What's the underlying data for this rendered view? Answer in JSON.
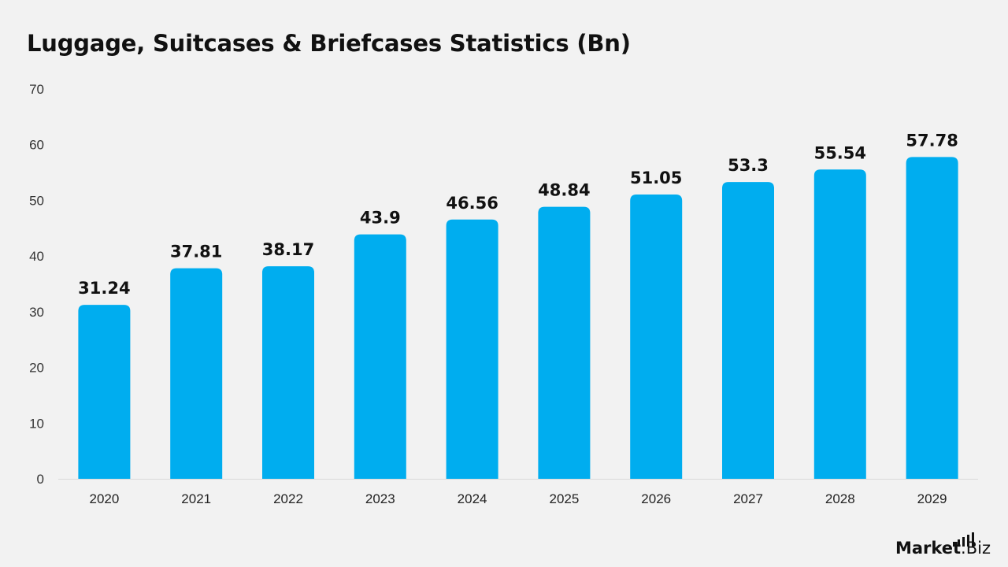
{
  "chart_data": {
    "type": "bar",
    "title": "Luggage, Suitcases & Briefcases Statistics (Bn)",
    "categories": [
      "2020",
      "2021",
      "2022",
      "2023",
      "2024",
      "2025",
      "2026",
      "2027",
      "2028",
      "2029"
    ],
    "values": [
      31.24,
      37.81,
      38.17,
      43.9,
      46.56,
      48.84,
      51.05,
      53.3,
      55.54,
      57.78
    ],
    "data_labels": [
      "31.24",
      "37.81",
      "38.17",
      "43.9",
      "46.56",
      "48.84",
      "51.05",
      "53.3",
      "55.54",
      "57.78"
    ],
    "yticks": [
      "0",
      "10",
      "20",
      "30",
      "40",
      "50",
      "60",
      "70"
    ],
    "ylim": [
      0,
      70
    ],
    "xlabel": "",
    "ylabel": "",
    "grid": false,
    "bar_color": "#00adef"
  },
  "brand": {
    "name_main": "Market",
    "name_sub": ".Biz",
    "icon": "bar-chart-icon"
  }
}
